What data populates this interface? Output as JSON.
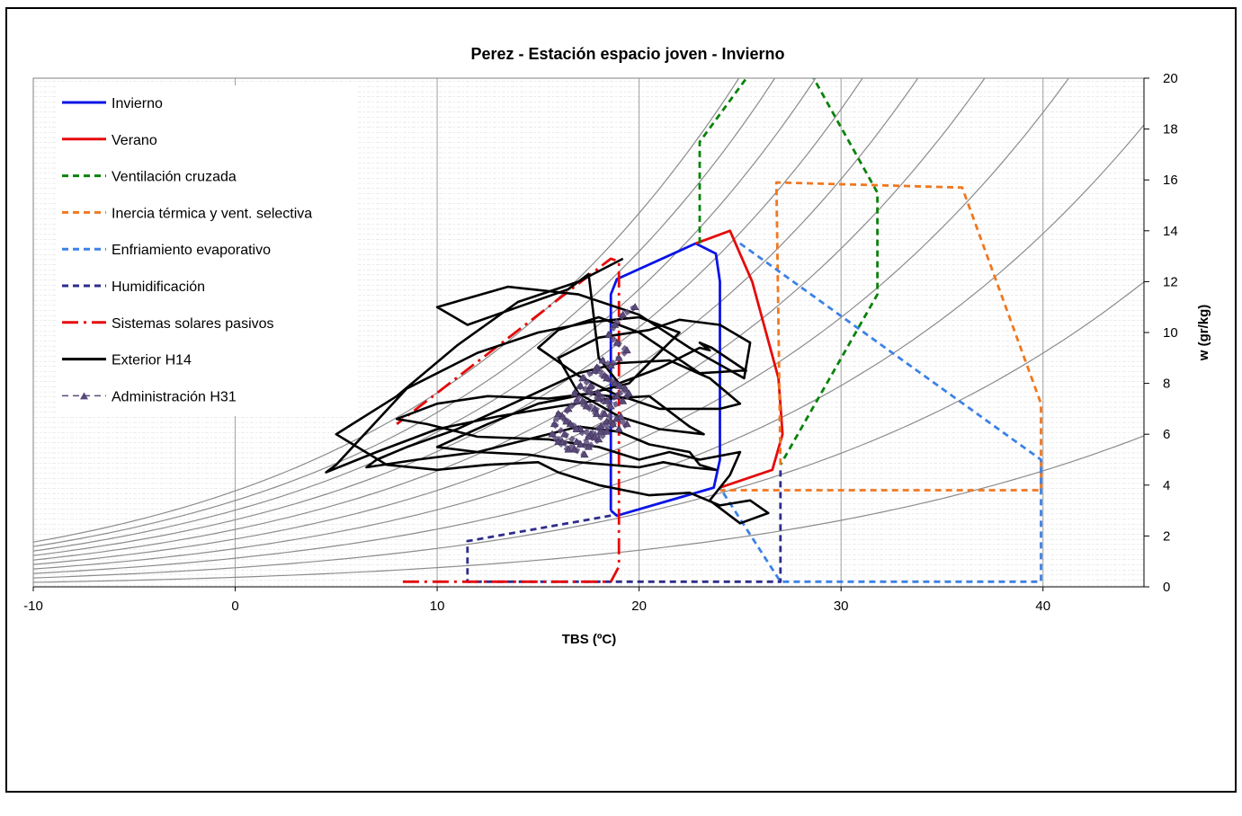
{
  "chart_data": {
    "type": "line",
    "title": "Perez - Estación espacio joven - Invierno",
    "xlabel": "TBS (ºC)",
    "ylabel": "w (gr/kg)",
    "xlim": [
      -10,
      45
    ],
    "ylim": [
      0,
      20
    ],
    "x_ticks": [
      "-10",
      "0",
      "10",
      "20",
      "30",
      "40"
    ],
    "y_ticks": [
      "0",
      "2",
      "4",
      "6",
      "8",
      "10",
      "12",
      "14",
      "16",
      "18",
      "20"
    ],
    "grid": true,
    "legend_position": "top-left",
    "rh_curves_percent": [
      10,
      20,
      30,
      40,
      50,
      60,
      70,
      80,
      90,
      100
    ],
    "series": [
      {
        "name": "Invierno",
        "color": "#0a14e6",
        "style": "solid",
        "x": [
          18.6,
          18.6,
          18.9,
          22.8,
          23.8,
          24.0,
          24.0,
          23.7,
          18.9,
          18.6
        ],
        "y": [
          3.0,
          11.5,
          12.1,
          13.5,
          13.1,
          12.0,
          5.0,
          3.9,
          2.8,
          3.0
        ]
      },
      {
        "name": "Verano",
        "color": "#e60a0a",
        "style": "solid",
        "x": [
          22.8,
          24.5,
          25.6,
          26.9,
          27.1,
          26.6,
          24.0
        ],
        "y": [
          13.5,
          14.0,
          12.0,
          8.2,
          6.0,
          4.6,
          3.9
        ]
      },
      {
        "name": "Ventilación cruzada",
        "color": "#0a820a",
        "style": "dashed",
        "x": [
          23.0,
          23.0,
          25.5,
          28.5,
          31.8,
          31.8,
          27.0
        ],
        "y": [
          13.5,
          17.5,
          20.2,
          20.2,
          15.5,
          11.5,
          4.8
        ]
      },
      {
        "name": "Inercia térmica y vent. selectiva",
        "color": "#f07820",
        "style": "dashed",
        "x": [
          27.0,
          26.8,
          26.8,
          36.0,
          39.9,
          39.9,
          24.0
        ],
        "y": [
          4.8,
          15.9,
          15.9,
          15.7,
          7.2,
          3.8,
          3.8
        ]
      },
      {
        "name": "Enfriamiento evaporativo",
        "color": "#3c82e6",
        "style": "dashed",
        "x": [
          25.0,
          39.9,
          39.9,
          27.0,
          24.0
        ],
        "y": [
          13.5,
          5.0,
          0.2,
          0.2,
          3.9
        ]
      },
      {
        "name": "Humidificación",
        "color": "#2d2d8c",
        "style": "dashed",
        "x": [
          18.6,
          11.5,
          11.5,
          27.0,
          27.0
        ],
        "y": [
          2.8,
          1.8,
          0.2,
          0.2,
          4.7
        ]
      },
      {
        "name": "Sistemas solares pasivos",
        "color": "#e60a0a",
        "style": "dashdot",
        "x": [
          8.3,
          18.6,
          19.0,
          19.0,
          18.6,
          8.0
        ],
        "y": [
          0.2,
          0.2,
          0.8,
          12.8,
          12.9,
          6.4
        ]
      },
      {
        "name": "Exterior H14",
        "color": "#000000",
        "style": "solid",
        "x": [
          19.2,
          17.0,
          14.0,
          11.0,
          8.0,
          5.0,
          7.5,
          10.0,
          12.5,
          15.0,
          16.0,
          18.0,
          20.5,
          22.5,
          24.0,
          25.5,
          26.4,
          25.0,
          23.5,
          24.5,
          25.0,
          23.0,
          21.5,
          20.0,
          18.0,
          15.5,
          12.0,
          9.5,
          8.0,
          10.0,
          12.5,
          15.5,
          17.5,
          19.5,
          21.0,
          24.0,
          25.0,
          23.5,
          21.5,
          19.0,
          17.0,
          14.0,
          11.0,
          8.5,
          7.0,
          6.5,
          9.0,
          12.0,
          14.5,
          17.0,
          19.0,
          20.5,
          22.5,
          23.0,
          23.8,
          22.5,
          21.2,
          20.0,
          17.0,
          14.5,
          12.0,
          10.0,
          12.5,
          15.0,
          17.5,
          19.5,
          21.0,
          22.0,
          20.0,
          17.5,
          15.0,
          12.0,
          8.5,
          5.0,
          4.5,
          7.0,
          10.0,
          13.0,
          16.0,
          18.5,
          20.5,
          22.5,
          23.2,
          21.0,
          19.0,
          17.0,
          16.0,
          18.0,
          20.5,
          22.0,
          24.0,
          25.5,
          25.2,
          22.5,
          20.0,
          17.0,
          13.5,
          10.0,
          11.5,
          14.0,
          16.5,
          17.5,
          18.0,
          19.0,
          21.0,
          23.0,
          23.5,
          23.0,
          23.6,
          25.3,
          25.0,
          23.0,
          20.0,
          18.0,
          16.0,
          15.0,
          17.0,
          18.0,
          19.0
        ],
        "y": [
          12.9,
          12.0,
          11.2,
          9.5,
          7.5,
          6.0,
          4.8,
          4.6,
          4.8,
          4.9,
          4.5,
          4.0,
          3.6,
          3.7,
          3.2,
          3.4,
          2.9,
          2.5,
          3.4,
          4.4,
          5.3,
          5.0,
          5.3,
          5.0,
          5.5,
          5.8,
          5.9,
          6.4,
          6.6,
          7.2,
          7.5,
          7.4,
          7.6,
          7.4,
          7.0,
          7.0,
          7.2,
          8.2,
          8.9,
          8.8,
          8.4,
          7.3,
          6.2,
          5.5,
          5.0,
          4.7,
          5.0,
          5.3,
          5.8,
          6.3,
          6.1,
          5.6,
          5.3,
          4.8,
          4.6,
          4.7,
          4.9,
          4.7,
          4.9,
          5.2,
          5.3,
          5.5,
          6.4,
          7.2,
          7.6,
          8.0,
          9.2,
          10.0,
          10.6,
          10.4,
          10.0,
          9.2,
          7.8,
          4.8,
          4.5,
          5.3,
          6.2,
          6.7,
          7.1,
          7.4,
          7.5,
          6.3,
          6.0,
          6.2,
          6.7,
          7.6,
          9.0,
          9.8,
          10.1,
          10.5,
          10.3,
          9.6,
          8.2,
          9.4,
          10.7,
          11.5,
          11.8,
          11.0,
          10.3,
          11.0,
          11.7,
          12.3,
          9.0,
          8.0,
          8.6,
          9.4,
          9.3,
          9.6,
          9.4,
          8.5,
          8.5,
          8.4,
          10.0,
          10.6,
          10.1,
          9.4,
          8.3,
          7.9,
          7.5
        ]
      },
      {
        "name": "Administración H31",
        "color": "#5a4a7a",
        "style": "dashed-marker",
        "x": [
          19.8,
          19.2,
          18.8,
          18.5,
          18.9,
          19.4,
          19.0,
          18.6,
          18.2,
          17.9,
          18.3,
          18.8,
          19.3,
          18.9,
          18.4,
          18.0,
          17.6,
          17.2,
          17.8,
          18.4,
          19.0,
          19.5,
          19.2,
          18.6,
          18.0,
          17.5,
          17.1,
          16.8,
          17.2,
          17.8,
          18.3,
          18.9,
          19.4,
          19.0,
          18.4,
          17.9,
          17.4,
          16.9,
          16.5,
          16.2,
          16.6,
          17.1,
          17.6,
          18.1,
          18.6,
          19.1,
          18.7,
          18.1,
          17.5,
          16.9,
          16.4,
          16.0,
          15.8,
          16.3,
          16.9,
          17.5,
          18.0,
          18.4,
          17.8,
          17.1,
          16.5,
          16.0,
          15.7,
          16.2,
          16.8,
          17.3
        ],
        "y": [
          11.0,
          10.7,
          10.3,
          9.9,
          9.6,
          9.3,
          9.0,
          8.7,
          8.9,
          8.6,
          8.3,
          8.0,
          7.8,
          7.5,
          7.3,
          7.6,
          7.9,
          8.2,
          8.5,
          8.2,
          7.9,
          7.6,
          7.3,
          7.1,
          7.4,
          7.7,
          7.9,
          7.6,
          7.3,
          7.0,
          6.8,
          6.6,
          6.4,
          6.2,
          6.5,
          6.8,
          7.1,
          7.3,
          7.0,
          6.7,
          6.4,
          6.2,
          6.0,
          6.3,
          6.5,
          6.7,
          6.4,
          6.1,
          5.9,
          6.2,
          6.5,
          6.8,
          6.4,
          6.0,
          5.7,
          5.5,
          5.8,
          6.1,
          5.9,
          5.6,
          5.4,
          5.7,
          6.0,
          5.7,
          5.4,
          5.2
        ]
      }
    ]
  }
}
